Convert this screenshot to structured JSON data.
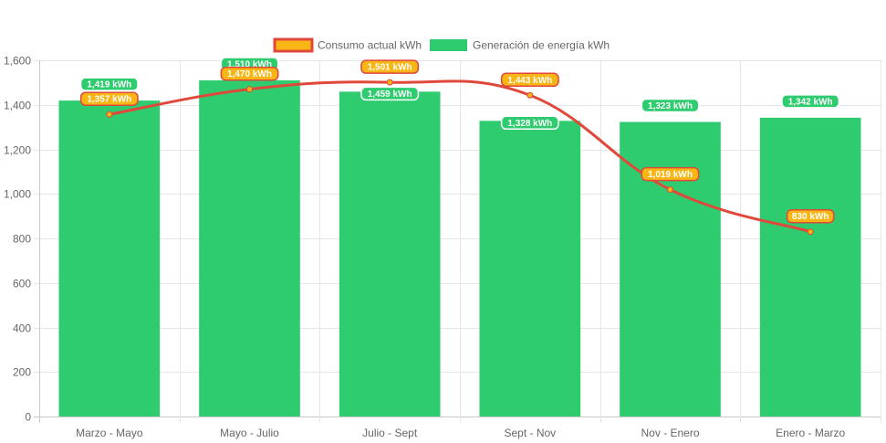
{
  "chart_data": {
    "type": "bar",
    "categories": [
      "Marzo - Mayo",
      "Mayo - Julio",
      "Julio - Sept",
      "Sept - Nov",
      "Nov - Enero",
      "Enero - Marzo"
    ],
    "series": [
      {
        "name": "Consumo actual kWh",
        "kind": "line",
        "values": [
          1357,
          1470,
          1501,
          1443,
          1019,
          830
        ],
        "labels": [
          "1,357 kWh",
          "1,470 kWh",
          "1,501 kWh",
          "1,443 kWh",
          "1,019 kWh",
          "830 kWh"
        ],
        "line_color": "#e0483b",
        "fill_color": "#f7b614"
      },
      {
        "name": "Generación de energía kWh",
        "kind": "bar",
        "values": [
          1419,
          1510,
          1459,
          1328,
          1323,
          1342
        ],
        "labels": [
          "1,419 kWh",
          "1,510 kWh",
          "1,459 kWh",
          "1,328 kWh",
          "1,323 kWh",
          "1,342 kWh"
        ],
        "color": "#2ecc6f"
      }
    ],
    "yticks": [
      "0",
      "200",
      "400",
      "600",
      "800",
      "1,000",
      "1,200",
      "1,400",
      "1,600"
    ],
    "ylim": [
      0,
      1600
    ],
    "title": "",
    "xlabel": "",
    "ylabel": "",
    "grid": true,
    "legend_position": "top"
  }
}
